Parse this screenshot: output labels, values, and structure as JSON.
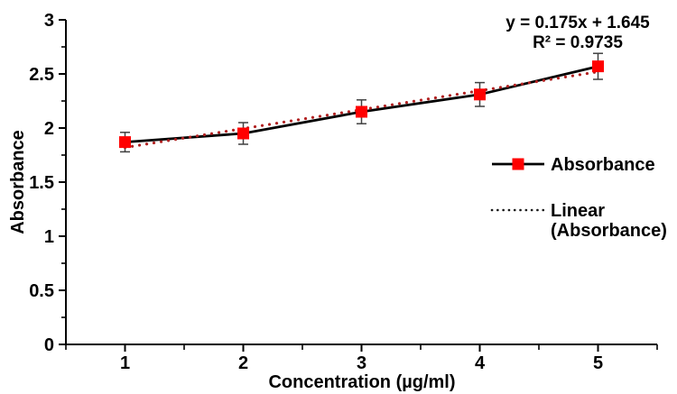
{
  "chart_data": {
    "type": "line",
    "title": "",
    "xlabel": "Concentration (µg/ml)",
    "ylabel": "Absorbance",
    "x": [
      1,
      2,
      3,
      4,
      5
    ],
    "series": [
      {
        "name": "Absorbance",
        "values": [
          1.87,
          1.95,
          2.15,
          2.31,
          2.57
        ],
        "error_bars": [
          0.09,
          0.1,
          0.11,
          0.11,
          0.12
        ]
      }
    ],
    "trendline": {
      "name": "Linear (Absorbance)",
      "slope": 0.175,
      "intercept": 1.645,
      "r2": 0.9735,
      "x_start": 1,
      "x_end": 5
    },
    "xlim": [
      0.5,
      5.5
    ],
    "ylim": [
      0,
      3
    ],
    "x_ticks": [
      "1",
      "2",
      "3",
      "4",
      "5"
    ],
    "y_ticks": [
      "0",
      "0.5",
      "1",
      "1.5",
      "2",
      "2.5",
      "3"
    ],
    "x_minor_step": 0.5,
    "y_minor_step": 0.25,
    "grid": false,
    "legend_position": "right-middle"
  },
  "annotation": {
    "equation": "y = 0.175x + 1.645",
    "r_squared": "R² = 0.9735"
  },
  "legend": {
    "items": [
      {
        "label": "Absorbance",
        "swatch": "solid-line-red-square-marker"
      },
      {
        "label": "Linear (Absorbance)",
        "label_lines": [
          "Linear",
          "(Absorbance)"
        ],
        "swatch": "dotted-line"
      }
    ]
  },
  "colors": {
    "marker": "#ff0000",
    "series_line": "#000000",
    "trendline": "#b22222",
    "axis": "#000000",
    "error_bar": "#404040",
    "legend_dotted": "#1a1a1a",
    "text": "#000000",
    "background": "#ffffff"
  }
}
